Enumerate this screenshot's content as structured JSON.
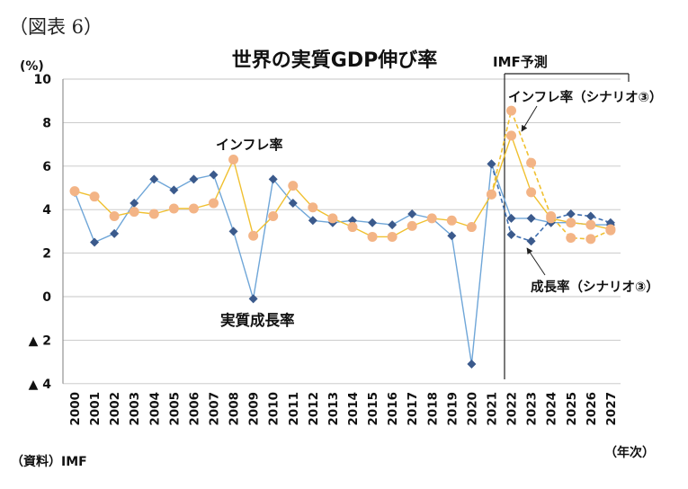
{
  "figure_label": "（図表 6）",
  "forecast_label": "IMF予測",
  "chart_data": {
    "type": "line",
    "title": "世界の実質GDP伸び率",
    "ylabel": "(%)",
    "xlabel": "（年次）",
    "source": "（資料）IMF",
    "x": [
      "2000",
      "2001",
      "2002",
      "2003",
      "2004",
      "2005",
      "2006",
      "2007",
      "2008",
      "2009",
      "2010",
      "2011",
      "2012",
      "2013",
      "2014",
      "2015",
      "2016",
      "2017",
      "2018",
      "2019",
      "2020",
      "2021",
      "2022",
      "2023",
      "2024",
      "2025",
      "2026",
      "2027"
    ],
    "ylim": [
      -4,
      10
    ],
    "yticks": [
      10,
      8,
      6,
      4,
      2,
      0,
      -2,
      -4
    ],
    "ytick_labels": [
      "10",
      "8",
      "6",
      "4",
      "2",
      "0",
      "▲ 2",
      "▲ 4"
    ],
    "grid": true,
    "series": [
      {
        "name": "実質成長率",
        "line_style": "solid",
        "marker": "diamond",
        "line_color": "#6fa6d8",
        "marker_color": "#3b5a8c",
        "x": [
          "2000",
          "2001",
          "2002",
          "2003",
          "2004",
          "2005",
          "2006",
          "2007",
          "2008",
          "2009",
          "2010",
          "2011",
          "2012",
          "2013",
          "2014",
          "2015",
          "2016",
          "2017",
          "2018",
          "2019",
          "2020",
          "2021",
          "2022",
          "2023",
          "2024",
          "2025",
          "2026",
          "2027"
        ],
        "values": [
          4.8,
          2.5,
          2.9,
          4.3,
          5.4,
          4.9,
          5.4,
          5.6,
          3.0,
          -0.1,
          5.4,
          4.3,
          3.5,
          3.4,
          3.5,
          3.4,
          3.3,
          3.8,
          3.6,
          2.8,
          -3.1,
          6.1,
          3.6,
          3.6,
          3.4,
          3.4,
          3.3,
          3.3
        ]
      },
      {
        "name": "成長率（シナリオ③）",
        "line_style": "dashed",
        "marker": "diamond",
        "line_color": "#3f6fb0",
        "marker_color": "#3b5a8c",
        "x": [
          "2021",
          "2022",
          "2023",
          "2024",
          "2025",
          "2026",
          "2027"
        ],
        "values": [
          6.1,
          2.85,
          2.55,
          3.55,
          3.8,
          3.7,
          3.4
        ]
      },
      {
        "name": "インフレ率",
        "line_style": "solid",
        "marker": "circle",
        "line_color": "#f0c030",
        "marker_color": "#f3b486",
        "x": [
          "2000",
          "2001",
          "2002",
          "2003",
          "2004",
          "2005",
          "2006",
          "2007",
          "2008",
          "2009",
          "2010",
          "2011",
          "2012",
          "2013",
          "2014",
          "2015",
          "2016",
          "2017",
          "2018",
          "2019",
          "2020",
          "2021",
          "2022",
          "2023",
          "2024",
          "2025",
          "2026",
          "2027"
        ],
        "values": [
          4.85,
          4.6,
          3.7,
          3.9,
          3.8,
          4.05,
          4.05,
          4.3,
          6.3,
          2.8,
          3.7,
          5.1,
          4.1,
          3.6,
          3.2,
          2.75,
          2.75,
          3.25,
          3.6,
          3.5,
          3.2,
          4.7,
          7.4,
          4.8,
          3.6,
          3.4,
          3.3,
          3.1
        ]
      },
      {
        "name": "インフレ率（シナリオ③）",
        "line_style": "dashed",
        "marker": "circle",
        "line_color": "#f0c030",
        "marker_color": "#f3b486",
        "x": [
          "2021",
          "2022",
          "2023",
          "2024",
          "2025",
          "2026",
          "2027"
        ],
        "values": [
          4.7,
          8.55,
          6.15,
          3.7,
          2.7,
          2.65,
          3.05
        ]
      }
    ]
  }
}
